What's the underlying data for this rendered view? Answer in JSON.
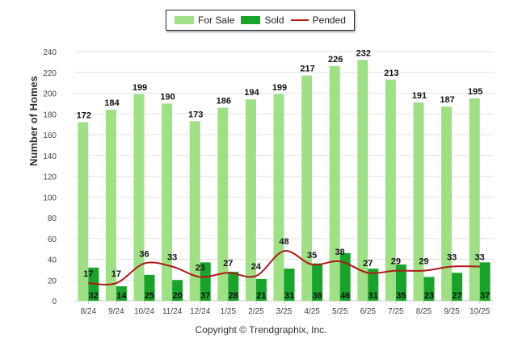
{
  "chart_data": {
    "type": "bar",
    "title": "",
    "xlabel": "",
    "ylabel": "Number of Homes",
    "ylim": [
      0,
      240
    ],
    "yticks": [
      "0",
      "20",
      "40",
      "60",
      "80",
      "100",
      "120",
      "140",
      "160",
      "180",
      "200",
      "220",
      "240"
    ],
    "categories": [
      "8/24",
      "9/24",
      "10/24",
      "11/24",
      "12/24",
      "1/25",
      "2/25",
      "3/25",
      "4/25",
      "5/25",
      "6/25",
      "7/25",
      "8/25",
      "9/25",
      "10/25"
    ],
    "series": [
      {
        "name": "For Sale",
        "kind": "bar",
        "color": "#9fdf85",
        "values": [
          172,
          184,
          199,
          190,
          173,
          186,
          194,
          199,
          217,
          226,
          232,
          213,
          191,
          187,
          195
        ]
      },
      {
        "name": "Sold",
        "kind": "bar",
        "color": "#1aa32b",
        "values": [
          32,
          14,
          25,
          20,
          37,
          28,
          21,
          31,
          36,
          46,
          31,
          35,
          23,
          27,
          37
        ]
      },
      {
        "name": "Pended",
        "kind": "line",
        "color": "#b01818",
        "values": [
          17,
          17,
          36,
          33,
          23,
          27,
          24,
          48,
          35,
          38,
          27,
          29,
          29,
          33,
          33
        ]
      }
    ],
    "legend_position": "top-center",
    "grid": true
  },
  "footer": {
    "copyright": "Copyright © Trendgraphix, Inc."
  }
}
